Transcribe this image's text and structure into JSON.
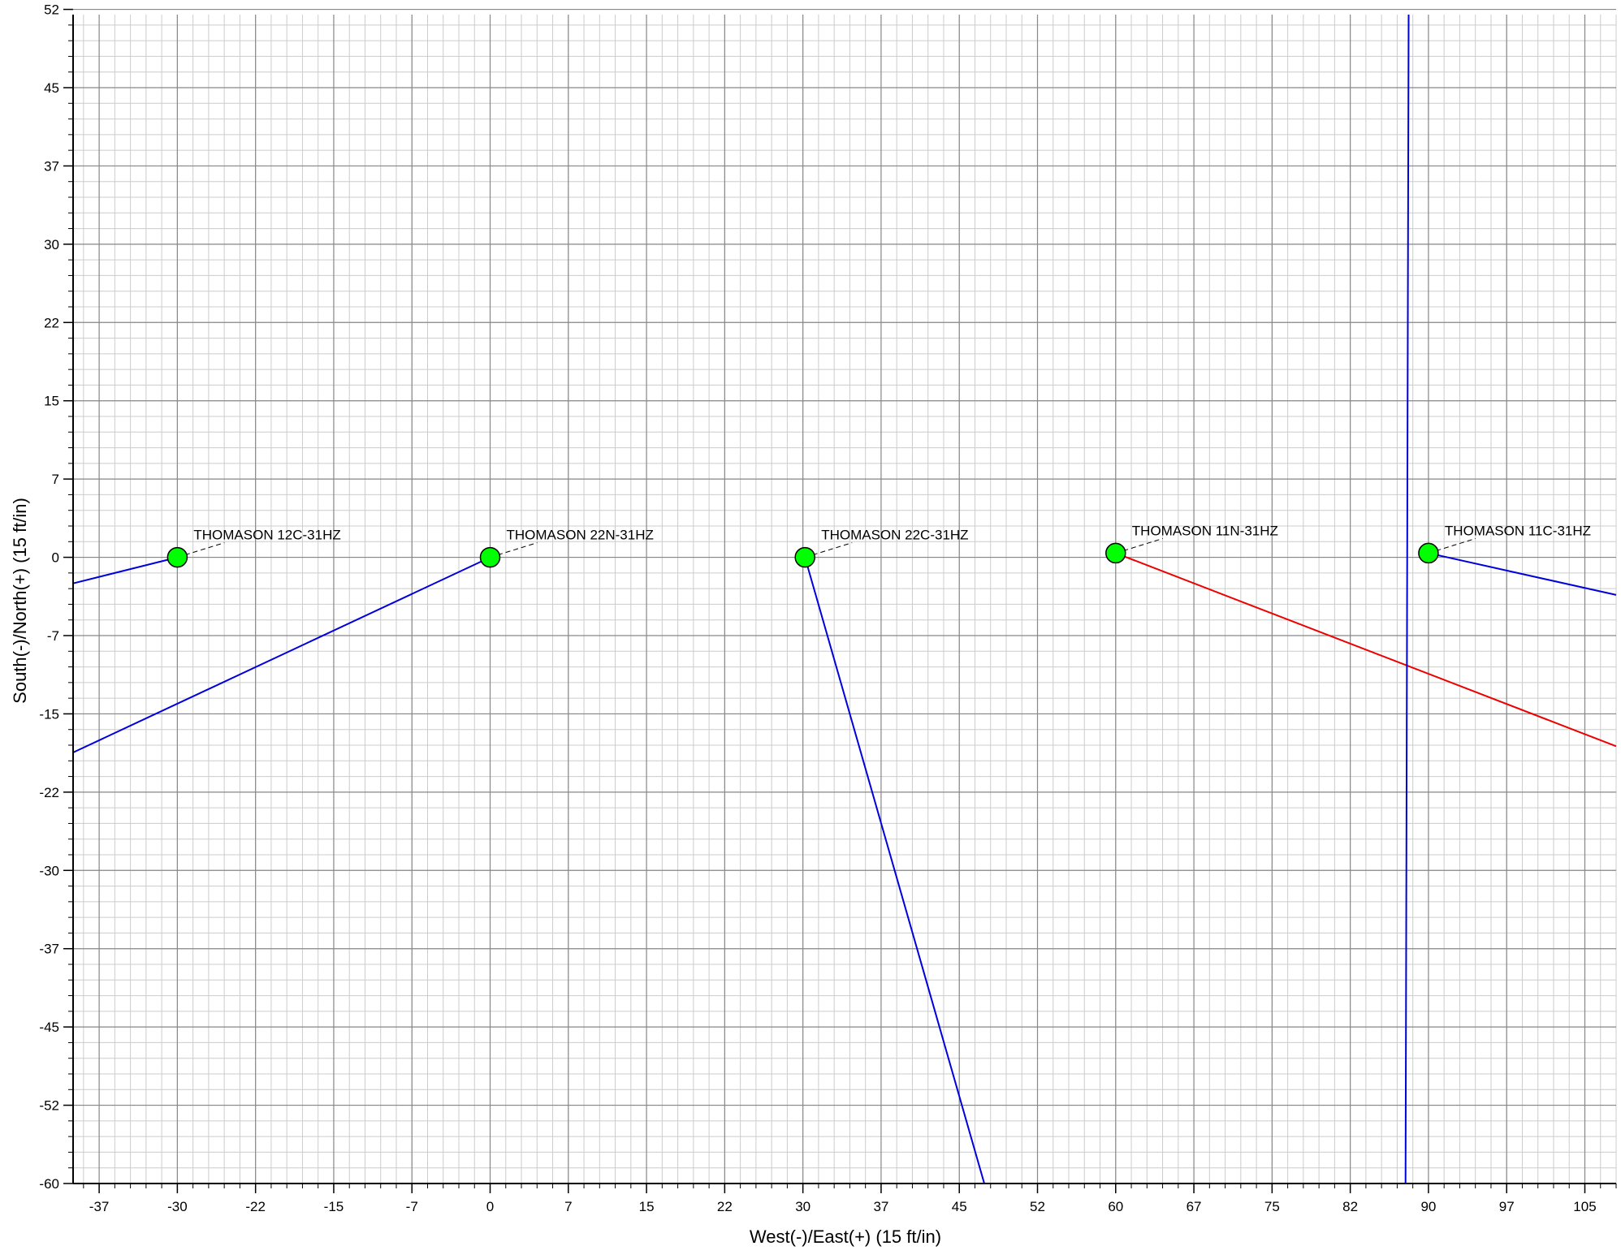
{
  "chart_data": {
    "type": "scatter",
    "xlabel": "West(-)/East(+) (15 ft/in)",
    "ylabel": "South(-)/North(+) (15 ft/in)",
    "xlim": [
      -40,
      108
    ],
    "ylim": [
      -60,
      52
    ],
    "x_ticks": [
      -37,
      -30,
      -22,
      -15,
      -7,
      0,
      7,
      15,
      22,
      30,
      37,
      45,
      52,
      60,
      67,
      75,
      82,
      90,
      97,
      105
    ],
    "x_tick_values": [
      -37.5,
      -30,
      -22.5,
      -15,
      -7.5,
      0,
      7.5,
      15,
      22.5,
      30,
      37.5,
      45,
      52.5,
      60,
      67.5,
      75,
      82.5,
      90,
      97.5,
      105
    ],
    "y_ticks": [
      52,
      45,
      37,
      30,
      22,
      15,
      7,
      0,
      -7,
      -15,
      -22,
      -30,
      -37,
      -45,
      -52,
      -60
    ],
    "y_tick_values": [
      52.5,
      45,
      37.5,
      30,
      22.5,
      15,
      7.5,
      0,
      -7.5,
      -15,
      -22.5,
      -30,
      -37.5,
      -45,
      -52.5,
      -60
    ],
    "grid": true,
    "colors": {
      "surface_marker": "#00ff00",
      "path_blue": "#0000dd",
      "path_red": "#ee0000",
      "grid_major": "#888888",
      "grid_minor": "#cccccc"
    },
    "wells": [
      {
        "name": "THOMASON 12C-31HZ",
        "x": -30,
        "y": 0,
        "path_color": "#0000dd",
        "path": [
          [
            -30,
            0
          ],
          [
            -40,
            -2.5
          ]
        ]
      },
      {
        "name": "THOMASON 22N-31HZ",
        "x": 0,
        "y": 0,
        "path_color": "#0000dd",
        "path": [
          [
            0,
            0
          ],
          [
            -40,
            -18.7
          ]
        ]
      },
      {
        "name": "THOMASON 22C-31HZ",
        "x": 30.2,
        "y": 0,
        "path_color": "#0000dd",
        "path": [
          [
            30.2,
            0
          ],
          [
            47.4,
            -60
          ]
        ]
      },
      {
        "name": "THOMASON 11N-31HZ",
        "x": 60,
        "y": 0.4,
        "path_color": "#ee0000",
        "path": [
          [
            60,
            0.4
          ],
          [
            108,
            -18.1
          ]
        ]
      },
      {
        "name": "THOMASON 11C-31HZ",
        "x": 90,
        "y": 0.4,
        "path_color": "#0000dd",
        "path": [
          [
            90,
            0.4
          ],
          [
            108,
            -3.6
          ]
        ]
      }
    ],
    "extra_paths": [
      {
        "color": "#0000dd",
        "path": [
          [
            88.1,
            52
          ],
          [
            87.8,
            -60
          ]
        ]
      }
    ]
  }
}
